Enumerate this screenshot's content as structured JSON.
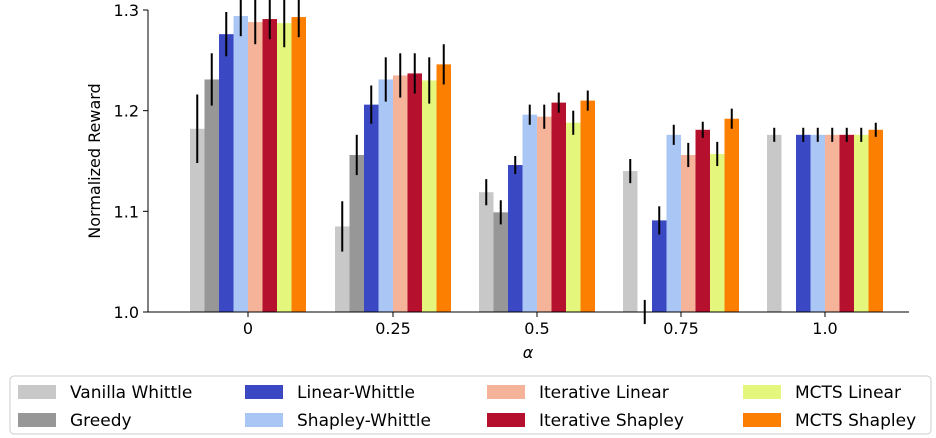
{
  "chart_data": {
    "type": "bar",
    "xlabel": "α",
    "ylabel": "Normalized Reward",
    "ylim": [
      1.0,
      1.3
    ],
    "yticks": [
      "1.0",
      "1.1",
      "1.2",
      "1.3"
    ],
    "categories": [
      "0",
      "0.25",
      "0.5",
      "0.75",
      "1.0"
    ],
    "grid": false,
    "legend_position": "bottom",
    "series": [
      {
        "name": "Vanilla Whittle",
        "color": "#c8c8c8",
        "values": [
          1.182,
          1.085,
          1.119,
          1.14,
          1.176
        ],
        "err": [
          0.034,
          0.025,
          0.013,
          0.012,
          0.007
        ]
      },
      {
        "name": "Greedy",
        "color": "#979797",
        "values": [
          1.231,
          1.156,
          1.099,
          1.0,
          null
        ],
        "err": [
          0.026,
          0.02,
          0.012,
          0.012,
          null
        ]
      },
      {
        "name": "Linear-Whittle",
        "color": "#3a48c4",
        "values": [
          1.276,
          1.206,
          1.146,
          1.091,
          1.176
        ],
        "err": [
          0.022,
          0.019,
          0.009,
          0.014,
          0.007
        ]
      },
      {
        "name": "Shapley-Whittle",
        "color": "#a9c6f4",
        "values": [
          1.294,
          1.231,
          1.196,
          1.176,
          1.176
        ],
        "err": [
          0.02,
          0.022,
          0.01,
          0.01,
          0.007
        ]
      },
      {
        "name": "Iterative Linear",
        "color": "#f5b49a",
        "values": [
          1.288,
          1.235,
          1.194,
          1.156,
          1.176
        ],
        "err": [
          0.022,
          0.022,
          0.012,
          0.012,
          0.007
        ]
      },
      {
        "name": "Iterative Shapley",
        "color": "#b5102d",
        "values": [
          1.291,
          1.237,
          1.208,
          1.181,
          1.176
        ],
        "err": [
          0.02,
          0.02,
          0.01,
          0.008,
          0.007
        ]
      },
      {
        "name": "MCTS Linear",
        "color": "#e4f77c",
        "values": [
          1.287,
          1.23,
          1.188,
          1.157,
          1.176
        ],
        "err": [
          0.024,
          0.023,
          0.012,
          0.012,
          0.007
        ]
      },
      {
        "name": "MCTS Shapley",
        "color": "#fd7f02",
        "values": [
          1.293,
          1.246,
          1.21,
          1.192,
          1.181
        ],
        "err": [
          0.02,
          0.02,
          0.01,
          0.01,
          0.007
        ]
      }
    ]
  }
}
